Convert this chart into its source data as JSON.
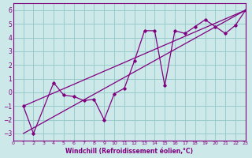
{
  "xlabel": "Windchill (Refroidissement éolien,°C)",
  "xlim": [
    0,
    23
  ],
  "ylim": [
    -3.5,
    6.5
  ],
  "yticks": [
    -3,
    -2,
    -1,
    0,
    1,
    2,
    3,
    4,
    5,
    6
  ],
  "xticks": [
    0,
    1,
    2,
    3,
    4,
    5,
    6,
    7,
    8,
    9,
    10,
    11,
    12,
    13,
    14,
    15,
    16,
    17,
    18,
    19,
    20,
    21,
    22,
    23
  ],
  "background_color": "#cce8e8",
  "line_color": "#800080",
  "grid_color": "#99cccc",
  "data_line": {
    "x": [
      1,
      2,
      4,
      5,
      6,
      7,
      8,
      9,
      10,
      11,
      12,
      13,
      14,
      15,
      16,
      17,
      18,
      19,
      20,
      21,
      22,
      23
    ],
    "y": [
      -1.0,
      -3.0,
      0.7,
      -0.2,
      -0.3,
      -0.6,
      -0.5,
      -2.0,
      -0.1,
      0.3,
      2.3,
      4.5,
      4.5,
      0.5,
      4.5,
      4.3,
      4.8,
      5.3,
      4.8,
      4.3,
      4.9,
      6.0
    ]
  },
  "line1": {
    "x": [
      1,
      23
    ],
    "y": [
      -1.0,
      6.0
    ]
  },
  "line2": {
    "x": [
      1,
      23
    ],
    "y": [
      -3.0,
      6.0
    ]
  }
}
